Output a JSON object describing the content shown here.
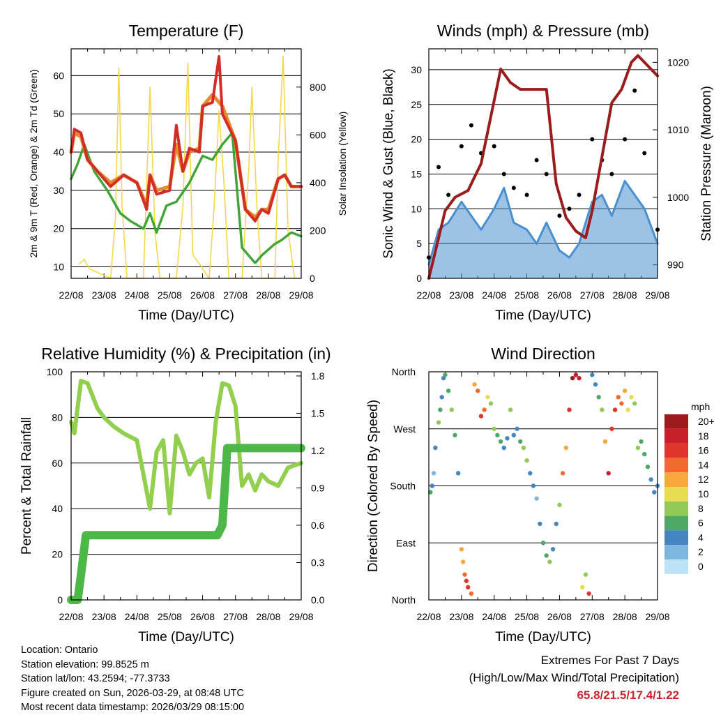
{
  "chart_data": [
    {
      "type": "line",
      "title": "Temperature (F)",
      "xlabel": "Time (Day/UTC)",
      "ylabel": "2m & 9m T (Red, Orange) & 2m Td (Green)",
      "ylabel_right": "Solar Insolation (Yellow)",
      "x_ticks": [
        "22/08",
        "23/08",
        "24/08",
        "25/08",
        "26/08",
        "27/08",
        "28/08",
        "29/08"
      ],
      "xlim": [
        0,
        7
      ],
      "ylim": [
        7,
        67
      ],
      "y_ticks": [
        "10",
        "20",
        "30",
        "40",
        "50",
        "60"
      ],
      "y2lim": [
        0,
        960
      ],
      "y2_ticks": [
        "0",
        "200",
        "400",
        "600",
        "800"
      ],
      "series": [
        {
          "name": "2m T",
          "color": "#e8892b",
          "x": [
            0,
            0.1,
            0.3,
            0.5,
            0.8,
            1.2,
            1.6,
            2.0,
            2.3,
            2.4,
            2.6,
            3.0,
            3.2,
            3.4,
            3.6,
            3.9,
            4.0,
            4.3,
            4.6,
            5.0,
            5.3,
            5.6,
            5.8,
            6.0,
            6.3,
            6.5,
            6.7,
            7.0
          ],
          "y": [
            40,
            45,
            44,
            38,
            35,
            32,
            34,
            32,
            26,
            34,
            30,
            31,
            42,
            35,
            40,
            41,
            52,
            55,
            52,
            43,
            25,
            23,
            25,
            25,
            33,
            34,
            31,
            31
          ]
        },
        {
          "name": "9m T",
          "color": "#d22d26",
          "x": [
            0,
            0.1,
            0.3,
            0.5,
            0.8,
            1.2,
            1.6,
            2.0,
            2.3,
            2.4,
            2.6,
            3.0,
            3.2,
            3.4,
            3.6,
            3.9,
            4.0,
            4.3,
            4.5,
            4.6,
            5.0,
            5.3,
            5.6,
            5.8,
            6.0,
            6.3,
            6.5,
            6.7,
            7.0
          ],
          "y": [
            40,
            46,
            45,
            38,
            35,
            31,
            34,
            32,
            25,
            34,
            29,
            30,
            47,
            35,
            41,
            40,
            52,
            53,
            65,
            50,
            43,
            25,
            22,
            25,
            24,
            33,
            34,
            31,
            31
          ]
        },
        {
          "name": "2m Td",
          "color": "#3fa535",
          "x": [
            0,
            0.2,
            0.4,
            0.7,
            1.1,
            1.5,
            1.8,
            2.2,
            2.4,
            2.6,
            2.9,
            3.2,
            3.6,
            4.0,
            4.3,
            4.6,
            4.9,
            5.2,
            5.6,
            5.8,
            6.2,
            6.4,
            6.7,
            7.0
          ],
          "y": [
            33,
            37,
            42,
            35,
            30,
            24,
            22,
            20,
            24,
            19,
            26,
            27,
            32,
            39,
            38,
            42,
            45,
            15,
            11,
            13,
            16,
            17,
            19,
            18
          ]
        },
        {
          "name": "Solar Insolation",
          "color": "#f5d84a",
          "axis": "right",
          "x": [
            0.25,
            0.4,
            0.55,
            1.2,
            1.35,
            1.45,
            1.55,
            1.7,
            2.2,
            2.3,
            2.4,
            2.55,
            2.7,
            3.2,
            3.4,
            3.55,
            3.7,
            4.2,
            4.35,
            4.5,
            4.65,
            4.8,
            5.2,
            5.4,
            5.5,
            5.65,
            5.8,
            6.2,
            6.3,
            6.45,
            6.6,
            6.8
          ],
          "y": [
            60,
            80,
            40,
            0,
            250,
            880,
            300,
            0,
            0,
            400,
            800,
            200,
            0,
            0,
            300,
            900,
            100,
            0,
            300,
            700,
            400,
            0,
            0,
            450,
            800,
            300,
            0,
            0,
            500,
            930,
            200,
            0
          ]
        }
      ]
    },
    {
      "type": "line",
      "title": "Winds (mph) & Pressure (mb)",
      "xlabel": "Time (Day/UTC)",
      "ylabel": "Sonic Wind & Gust (Blue, Black)",
      "ylabel_right": "Station Pressure (Maroon)",
      "x_ticks": [
        "22/08",
        "23/08",
        "24/08",
        "25/08",
        "26/08",
        "27/08",
        "28/08",
        "29/08"
      ],
      "xlim": [
        0,
        7
      ],
      "ylim": [
        0,
        33
      ],
      "y_ticks": [
        "0",
        "5",
        "10",
        "15",
        "20",
        "25",
        "30"
      ],
      "y2lim": [
        988,
        1022
      ],
      "y2_ticks": [
        "990",
        "1000",
        "1010",
        "1020"
      ],
      "series": [
        {
          "name": "Sonic Wind",
          "color": "#4a90cf",
          "x": [
            0,
            0.3,
            0.6,
            1.0,
            1.3,
            1.6,
            2.0,
            2.3,
            2.6,
            3.0,
            3.3,
            3.6,
            4.0,
            4.3,
            4.6,
            5.0,
            5.3,
            5.6,
            6.0,
            6.3,
            6.6,
            7.0
          ],
          "y": [
            2,
            7,
            8,
            11,
            9,
            7,
            10,
            13,
            8,
            7,
            5,
            8,
            4,
            3,
            5,
            11,
            12,
            9,
            14,
            12,
            10,
            5
          ]
        },
        {
          "name": "Gust",
          "color": "#000000",
          "x": [
            0,
            0.3,
            0.6,
            1.0,
            1.3,
            1.6,
            2.0,
            2.3,
            2.6,
            3.0,
            3.3,
            3.6,
            4.0,
            4.3,
            4.6,
            5.0,
            5.3,
            5.6,
            6.0,
            6.3,
            6.6,
            7.0
          ],
          "y": [
            3,
            16,
            12,
            19,
            22,
            18,
            19,
            15,
            13,
            12,
            17,
            15,
            9,
            10,
            12,
            20,
            17,
            15,
            20,
            27,
            18,
            7
          ]
        },
        {
          "name": "Station Pressure",
          "color": "#9b1c1c",
          "axis": "right",
          "x": [
            0,
            0.2,
            0.5,
            0.8,
            1.2,
            1.6,
            1.9,
            2.2,
            2.5,
            2.8,
            3.2,
            3.6,
            3.9,
            4.2,
            4.5,
            4.8,
            5.0,
            5.3,
            5.6,
            5.9,
            6.2,
            6.4,
            6.6,
            6.8,
            7.0
          ],
          "y": [
            988,
            992,
            998,
            1000,
            1001,
            1005,
            1012,
            1019,
            1017,
            1016,
            1016,
            1016,
            1002,
            997,
            995,
            994,
            998,
            1006,
            1014,
            1016,
            1020,
            1021,
            1020,
            1019,
            1018
          ]
        }
      ]
    },
    {
      "type": "line",
      "title": "Relative Humidity (%) & Precipitation (in)",
      "xlabel": "Time (Day/UTC)",
      "ylabel": "Percent & Total Rainfall",
      "x_ticks": [
        "22/08",
        "23/08",
        "24/08",
        "25/08",
        "26/08",
        "27/08",
        "28/08",
        "29/08"
      ],
      "xlim": [
        0,
        7
      ],
      "ylim": [
        0,
        100
      ],
      "y_ticks": [
        "0",
        "20",
        "40",
        "60",
        "80",
        "100"
      ],
      "y2lim": [
        0,
        1.8333
      ],
      "y2_ticks": [
        "0.0",
        "0.3",
        "0.6",
        "0.9",
        "1.2",
        "1.5",
        "1.8"
      ],
      "series": [
        {
          "name": "Relative Humidity",
          "color": "#92cf4f",
          "x": [
            0,
            0.1,
            0.3,
            0.5,
            0.8,
            1.0,
            1.3,
            1.6,
            2.0,
            2.2,
            2.4,
            2.6,
            2.8,
            3.0,
            3.2,
            3.4,
            3.6,
            3.8,
            4.0,
            4.2,
            4.4,
            4.6,
            4.8,
            5.0,
            5.2,
            5.4,
            5.6,
            5.8,
            6.0,
            6.3,
            6.6,
            7.0
          ],
          "y": [
            78,
            73,
            96,
            95,
            84,
            80,
            76,
            73,
            70,
            55,
            40,
            65,
            70,
            38,
            72,
            65,
            55,
            60,
            62,
            45,
            78,
            95,
            94,
            85,
            50,
            55,
            48,
            55,
            52,
            50,
            58,
            60
          ]
        },
        {
          "name": "Total Precipitation",
          "color": "#4db848",
          "axis": "right",
          "x": [
            0,
            0.2,
            0.3,
            0.45,
            0.6,
            4.45,
            4.6,
            4.75,
            5.0,
            6.0,
            7.0
          ],
          "y": [
            0,
            0,
            0.2,
            0.52,
            0.52,
            0.52,
            0.6,
            1.22,
            1.22,
            1.22,
            1.22
          ]
        }
      ]
    },
    {
      "type": "scatter",
      "title": "Wind Direction",
      "xlabel": "Time (Day/UTC)",
      "ylabel": "Direction (Colored By Speed)",
      "x_ticks": [
        "22/08",
        "23/08",
        "24/08",
        "25/08",
        "26/08",
        "27/08",
        "28/08",
        "29/08"
      ],
      "xlim": [
        0,
        7
      ],
      "y_ticks": [
        "North",
        "East",
        "South",
        "West",
        "North"
      ],
      "ylim": [
        0,
        360
      ],
      "legend": {
        "title": "mph",
        "position": "right",
        "labels": [
          "20+",
          "18",
          "16",
          "14",
          "12",
          "10",
          "8",
          "6",
          "4",
          "2",
          "0"
        ],
        "colors": [
          "#9e1a1c",
          "#c8202a",
          "#e0352b",
          "#f26b2e",
          "#f9a83e",
          "#e8dc52",
          "#93c957",
          "#4ea865",
          "#4585c2",
          "#7eb6e0",
          "#bde3f6"
        ]
      },
      "series": [
        {
          "name": "Direction samples",
          "x": [
            0.05,
            0.1,
            0.15,
            0.2,
            0.3,
            0.35,
            0.4,
            0.45,
            0.5,
            0.6,
            0.7,
            0.8,
            0.9,
            1.0,
            1.05,
            1.1,
            1.15,
            1.2,
            1.3,
            1.4,
            1.5,
            1.6,
            1.7,
            1.8,
            1.9,
            2.0,
            2.1,
            2.2,
            2.3,
            2.4,
            2.5,
            2.6,
            2.7,
            2.8,
            2.9,
            3.0,
            3.1,
            3.2,
            3.3,
            3.4,
            3.5,
            3.6,
            3.7,
            3.8,
            3.9,
            4.0,
            4.1,
            4.2,
            4.3,
            4.4,
            4.5,
            4.6,
            4.7,
            4.8,
            4.9,
            5.0,
            5.1,
            5.2,
            5.3,
            5.4,
            5.5,
            5.6,
            5.7,
            5.8,
            5.9,
            6.0,
            6.1,
            6.2,
            6.3,
            6.4,
            6.5,
            6.6,
            6.7,
            6.8,
            6.9,
            7.0
          ],
          "y": [
            170,
            180,
            200,
            240,
            280,
            300,
            320,
            350,
            355,
            330,
            300,
            260,
            200,
            80,
            60,
            40,
            30,
            20,
            10,
            340,
            330,
            290,
            300,
            320,
            310,
            270,
            260,
            250,
            240,
            255,
            300,
            260,
            270,
            250,
            240,
            220,
            200,
            180,
            160,
            120,
            90,
            70,
            60,
            80,
            120,
            150,
            200,
            240,
            300,
            350,
            355,
            350,
            20,
            40,
            10,
            355,
            340,
            320,
            300,
            250,
            200,
            270,
            300,
            320,
            310,
            330,
            300,
            320,
            310,
            240,
            250,
            230,
            210,
            190,
            170,
            180
          ],
          "speed": [
            6,
            4,
            2,
            3,
            8,
            6,
            4,
            3,
            5,
            6,
            7,
            5,
            4,
            11,
            12,
            14,
            15,
            16,
            13,
            12,
            14,
            15,
            13,
            9,
            8,
            7,
            5,
            6,
            4,
            3,
            8,
            4,
            3,
            5,
            7,
            8,
            4,
            3,
            2,
            4,
            6,
            5,
            7,
            3,
            4,
            8,
            14,
            12,
            16,
            19,
            18,
            17,
            10,
            8,
            16,
            4,
            3,
            6,
            8,
            12,
            18,
            16,
            15,
            14,
            13,
            12,
            10,
            9,
            8,
            7,
            6,
            5,
            5,
            4,
            3,
            3
          ]
        }
      ]
    }
  ],
  "footer": {
    "location": "Location: Ontario",
    "elevation": "Station elevation: 99.8525 m",
    "latlon": "Station lat/lon: 43.2594; -77.3733",
    "created": "Figure created on Sun, 2026-03-29, at 08:48 UTC",
    "timestamp": "Most recent data timestamp: 2026/03/29 08:15:00",
    "extremes_title": "Extremes For Past 7 Days",
    "extremes_subtitle": "(High/Low/Max Wind/Total Precipitation)",
    "extremes_values": "65.8/21.5/17.4/1.22"
  }
}
